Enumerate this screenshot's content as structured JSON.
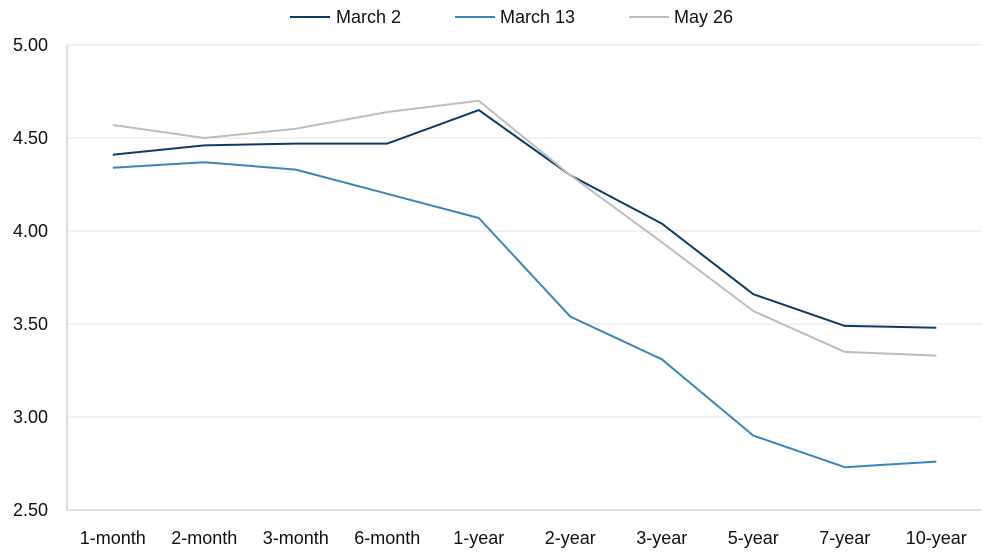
{
  "chart_data": {
    "type": "line",
    "title": "",
    "xlabel": "",
    "ylabel": "",
    "categories": [
      "1-month",
      "2-month",
      "3-month",
      "6-month",
      "1-year",
      "2-year",
      "3-year",
      "5-year",
      "7-year",
      "10-year"
    ],
    "ylim": [
      2.5,
      5.0
    ],
    "yticks": [
      "2.50",
      "3.00",
      "3.50",
      "4.00",
      "4.50",
      "5.00"
    ],
    "grid": true,
    "legend_position": "top-center",
    "series": [
      {
        "name": "March 2",
        "color": "#0d3b66",
        "values": [
          4.41,
          4.46,
          4.47,
          4.47,
          4.65,
          4.3,
          4.04,
          3.66,
          3.49,
          3.48
        ]
      },
      {
        "name": "March 13",
        "color": "#3a86b6",
        "values": [
          4.34,
          4.37,
          4.33,
          4.2,
          4.07,
          3.54,
          3.31,
          2.9,
          2.73,
          2.76
        ]
      },
      {
        "name": "May 26",
        "color": "#bdbdbd",
        "values": [
          4.57,
          4.5,
          4.55,
          4.64,
          4.7,
          4.3,
          3.94,
          3.57,
          3.35,
          3.33
        ]
      }
    ]
  }
}
